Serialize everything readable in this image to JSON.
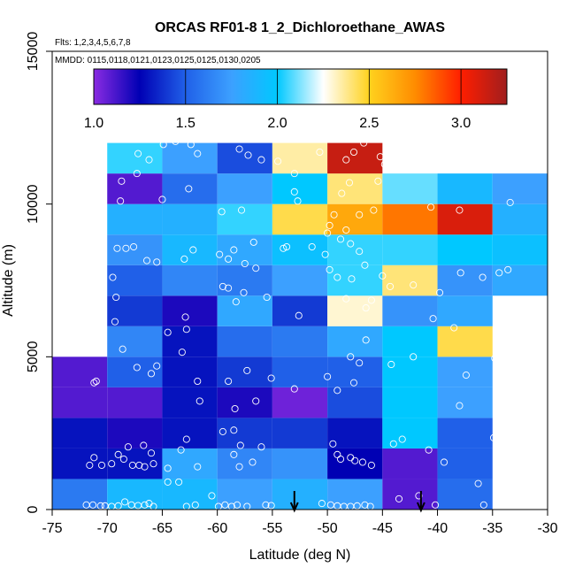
{
  "chart_data": {
    "type": "heatmap",
    "title": "ORCAS RF01-8 1_2_Dichloroethane_AWAS",
    "flights_label": "Flts: 1,2,3,4,5,6,7,8",
    "dates_label": "MMDD: 0115,0118,0121,0123,0125,0125,0130,0205",
    "xlabel": "Latitude (deg N)",
    "ylabel": "Altitude (m)",
    "xlim": [
      -75,
      -30
    ],
    "ylim": [
      0,
      15000
    ],
    "x_ticks": [
      -75,
      -70,
      -65,
      -60,
      -55,
      -50,
      -45,
      -40,
      -35,
      -30
    ],
    "x_tick_labels": [
      "-75",
      "-70",
      "-65",
      "-60",
      "-55",
      "-50",
      "-45",
      "-40",
      "-35",
      "-30"
    ],
    "y_ticks": [
      0,
      5000,
      10000,
      15000
    ],
    "y_tick_labels": [
      "0",
      "5000",
      "10000",
      "15000"
    ],
    "colorbar": {
      "range": [
        1.0,
        3.25
      ],
      "ticks": [
        1.0,
        1.5,
        2.0,
        2.5,
        3.0
      ],
      "tick_labels": [
        "1.0",
        "1.5",
        "2.0",
        "2.5",
        "3.0"
      ],
      "colors": [
        "#8a2be2",
        "#0000b4",
        "#2060e8",
        "#3ca0ff",
        "#00c8ff",
        "#ffffff",
        "#ffd21e",
        "#ff8c00",
        "#ff1e00",
        "#a01e1e"
      ]
    },
    "lat_bins": [
      -75,
      -70,
      -65,
      -60,
      -55,
      -50,
      -45,
      -40,
      -35
    ],
    "alt_bins": [
      0,
      1000,
      2000,
      3000,
      4000,
      5000,
      6000,
      7000,
      8000,
      9000,
      10000,
      11000,
      12000
    ],
    "grid": [
      [
        1.6,
        1.9,
        1.9,
        1.75,
        1.85,
        1.75,
        1.1,
        1.55,
        null
      ],
      [
        1.3,
        1.3,
        1.8,
        1.65,
        1.7,
        1.25,
        1.1,
        1.5,
        null
      ],
      [
        1.3,
        1.2,
        1.3,
        1.4,
        1.4,
        1.3,
        2.0,
        1.5,
        null
      ],
      [
        1.1,
        1.1,
        1.3,
        1.2,
        1.05,
        1.45,
        2.0,
        1.75,
        null
      ],
      [
        1.1,
        1.5,
        1.3,
        1.4,
        1.5,
        1.5,
        2.0,
        1.75,
        null
      ],
      [
        null,
        1.65,
        1.3,
        1.55,
        1.6,
        1.8,
        2.0,
        2.45,
        null
      ],
      [
        null,
        1.4,
        1.2,
        1.8,
        1.4,
        2.3,
        1.7,
        1.8,
        null
      ],
      [
        null,
        1.5,
        1.65,
        1.6,
        1.75,
        2.05,
        2.4,
        1.7,
        1.8
      ],
      [
        null,
        1.7,
        1.9,
        1.8,
        1.95,
        2.05,
        2.05,
        2.0,
        1.95
      ],
      [
        null,
        1.85,
        1.85,
        2.05,
        2.45,
        2.65,
        2.8,
        3.1,
        1.85
      ],
      [
        null,
        1.1,
        1.55,
        1.75,
        2.0,
        2.4,
        2.1,
        1.9,
        1.75
      ],
      [
        null,
        2.05,
        1.75,
        1.45,
        2.35,
        3.15,
        null,
        null,
        null
      ]
    ],
    "samples": [
      [
        -71.2,
        4150
      ],
      [
        -71.0,
        4200
      ],
      [
        -71.6,
        1450
      ],
      [
        -71.2,
        1700
      ],
      [
        -70.5,
        1450
      ],
      [
        -69.6,
        1500
      ],
      [
        -69.0,
        1800
      ],
      [
        -68.5,
        1650
      ],
      [
        -68.1,
        2050
      ],
      [
        -66.7,
        2100
      ],
      [
        -67.7,
        1450
      ],
      [
        -67.1,
        1450
      ],
      [
        -66.6,
        1400
      ],
      [
        -65.8,
        1500
      ],
      [
        -66.0,
        1850
      ],
      [
        -64.5,
        1350
      ],
      [
        -62.8,
        2300
      ],
      [
        -63.3,
        1950
      ],
      [
        -61.8,
        1400
      ],
      [
        -58.5,
        2600
      ],
      [
        -59.5,
        2550
      ],
      [
        -57.9,
        2100
      ],
      [
        -56.0,
        2050
      ],
      [
        -58.5,
        1800
      ],
      [
        -58.0,
        1400
      ],
      [
        -56.8,
        1550
      ],
      [
        -49.5,
        2150
      ],
      [
        -49.1,
        1800
      ],
      [
        -48.8,
        1650
      ],
      [
        -47.9,
        1700
      ],
      [
        -47.5,
        1600
      ],
      [
        -46.8,
        1550
      ],
      [
        -46.0,
        1450
      ],
      [
        -44.0,
        2150
      ],
      [
        -43.2,
        2300
      ],
      [
        -40.8,
        1950
      ],
      [
        -39.4,
        1550
      ],
      [
        -37.4,
        4400
      ],
      [
        -34.9,
        2350
      ],
      [
        -36.3,
        850
      ],
      [
        -71.9,
        150
      ],
      [
        -71.3,
        150
      ],
      [
        -70.6,
        120
      ],
      [
        -70.2,
        120
      ],
      [
        -69.6,
        100
      ],
      [
        -69.0,
        120
      ],
      [
        -68.4,
        250
      ],
      [
        -67.8,
        150
      ],
      [
        -67.2,
        130
      ],
      [
        -66.6,
        150
      ],
      [
        -66.2,
        200
      ],
      [
        -65.8,
        100
      ],
      [
        -64.5,
        900
      ],
      [
        -63.5,
        900
      ],
      [
        -62.8,
        100
      ],
      [
        -62.0,
        150
      ],
      [
        -60.5,
        450
      ],
      [
        -59.9,
        100
      ],
      [
        -59.3,
        150
      ],
      [
        -58.7,
        100
      ],
      [
        -58.2,
        150
      ],
      [
        -57.3,
        100
      ],
      [
        -55.6,
        150
      ],
      [
        -55.1,
        130
      ],
      [
        -50.5,
        200
      ],
      [
        -49.7,
        150
      ],
      [
        -49.1,
        120
      ],
      [
        -48.5,
        100
      ],
      [
        -47.9,
        100
      ],
      [
        -47.3,
        120
      ],
      [
        -46.6,
        150
      ],
      [
        -46.1,
        100
      ],
      [
        -43.5,
        350
      ],
      [
        -41.7,
        450
      ],
      [
        -40.2,
        150
      ],
      [
        -35.8,
        150
      ],
      [
        -65.5,
        4700
      ],
      [
        -63.2,
        5150
      ],
      [
        -62.8,
        5900
      ],
      [
        -61.8,
        4200
      ],
      [
        -61.6,
        3550
      ],
      [
        -59.0,
        4200
      ],
      [
        -58.4,
        3300
      ],
      [
        -57.3,
        4550
      ],
      [
        -56.5,
        3550
      ],
      [
        -55.1,
        4300
      ],
      [
        -53.0,
        3950
      ],
      [
        -52.6,
        6350
      ],
      [
        -50.0,
        4350
      ],
      [
        -49.1,
        3900
      ],
      [
        -47.9,
        5000
      ],
      [
        -47.6,
        4150
      ],
      [
        -47.1,
        4800
      ],
      [
        -46.5,
        5550
      ],
      [
        -44.2,
        4750
      ],
      [
        -42.2,
        5000
      ],
      [
        -40.4,
        6250
      ],
      [
        -38.5,
        5950
      ],
      [
        -38.0,
        3400
      ],
      [
        -34.8,
        4950
      ],
      [
        -69.5,
        7600
      ],
      [
        -69.3,
        6150
      ],
      [
        -69.2,
        6950
      ],
      [
        -68.6,
        5250
      ],
      [
        -67.3,
        4650
      ],
      [
        -66.0,
        4450
      ],
      [
        -64.5,
        5800
      ],
      [
        -62.9,
        6300
      ],
      [
        -58.3,
        6800
      ],
      [
        -59.5,
        7300
      ],
      [
        -59.0,
        7250
      ],
      [
        -57.6,
        7100
      ],
      [
        -56.7,
        8750
      ],
      [
        -55.5,
        6950
      ],
      [
        -49.8,
        7850
      ],
      [
        -49.1,
        7600
      ],
      [
        -48.3,
        6900
      ],
      [
        -47.8,
        7550
      ],
      [
        -46.5,
        6600
      ],
      [
        -46.0,
        6850
      ],
      [
        -44.3,
        7300
      ],
      [
        -42.2,
        7350
      ],
      [
        -39.8,
        7100
      ],
      [
        -37.9,
        7750
      ],
      [
        -35.9,
        7600
      ],
      [
        -34.4,
        7750
      ],
      [
        -33.6,
        7850
      ],
      [
        -69.1,
        8550
      ],
      [
        -68.3,
        8550
      ],
      [
        -67.6,
        8600
      ],
      [
        -66.4,
        8150
      ],
      [
        -65.5,
        8100
      ],
      [
        -63.0,
        8200
      ],
      [
        -62.2,
        8500
      ],
      [
        -59.8,
        8350
      ],
      [
        -59.0,
        8200
      ],
      [
        -58.5,
        8500
      ],
      [
        -57.5,
        8050
      ],
      [
        -56.5,
        7900
      ],
      [
        -54.0,
        8550
      ],
      [
        -53.7,
        8600
      ],
      [
        -51.4,
        8600
      ],
      [
        -50.2,
        8350
      ],
      [
        -48.8,
        8850
      ],
      [
        -47.9,
        8700
      ],
      [
        -47.1,
        8450
      ],
      [
        -46.6,
        8000
      ],
      [
        -45.0,
        7650
      ],
      [
        -48.3,
        9150
      ],
      [
        -47.1,
        9650
      ],
      [
        -45.8,
        9800
      ],
      [
        -40.6,
        9900
      ],
      [
        -38.0,
        9800
      ],
      [
        -33.4,
        10050
      ],
      [
        -68.8,
        10100
      ],
      [
        -67.3,
        11000
      ],
      [
        -65.0,
        10150
      ],
      [
        -62.6,
        10500
      ],
      [
        -59.6,
        9750
      ],
      [
        -57.8,
        9800
      ],
      [
        -53.0,
        10400
      ],
      [
        -52.7,
        10100
      ],
      [
        -48.7,
        10350
      ],
      [
        -48.0,
        10700
      ],
      [
        -49.4,
        9650
      ],
      [
        -49.8,
        9300
      ],
      [
        -50.0,
        9050
      ],
      [
        -68.7,
        10750
      ],
      [
        -67.2,
        11650
      ],
      [
        -66.2,
        11450
      ],
      [
        -64.9,
        11950
      ],
      [
        -63.8,
        12050
      ],
      [
        -62.4,
        11950
      ],
      [
        -61.8,
        11650
      ],
      [
        -58.0,
        11800
      ],
      [
        -57.2,
        11600
      ],
      [
        -56.0,
        11450
      ],
      [
        -54.5,
        11400
      ],
      [
        -53.0,
        11000
      ],
      [
        -50.7,
        11700
      ],
      [
        -48.3,
        11450
      ],
      [
        -47.6,
        11700
      ],
      [
        -46.7,
        12000
      ],
      [
        -45.2,
        11550
      ],
      [
        -45.4,
        10750
      ],
      [
        -44.8,
        11300
      ],
      [
        -44.6,
        11350
      ]
    ],
    "arrows": [
      -53.0,
      -41.5
    ]
  }
}
